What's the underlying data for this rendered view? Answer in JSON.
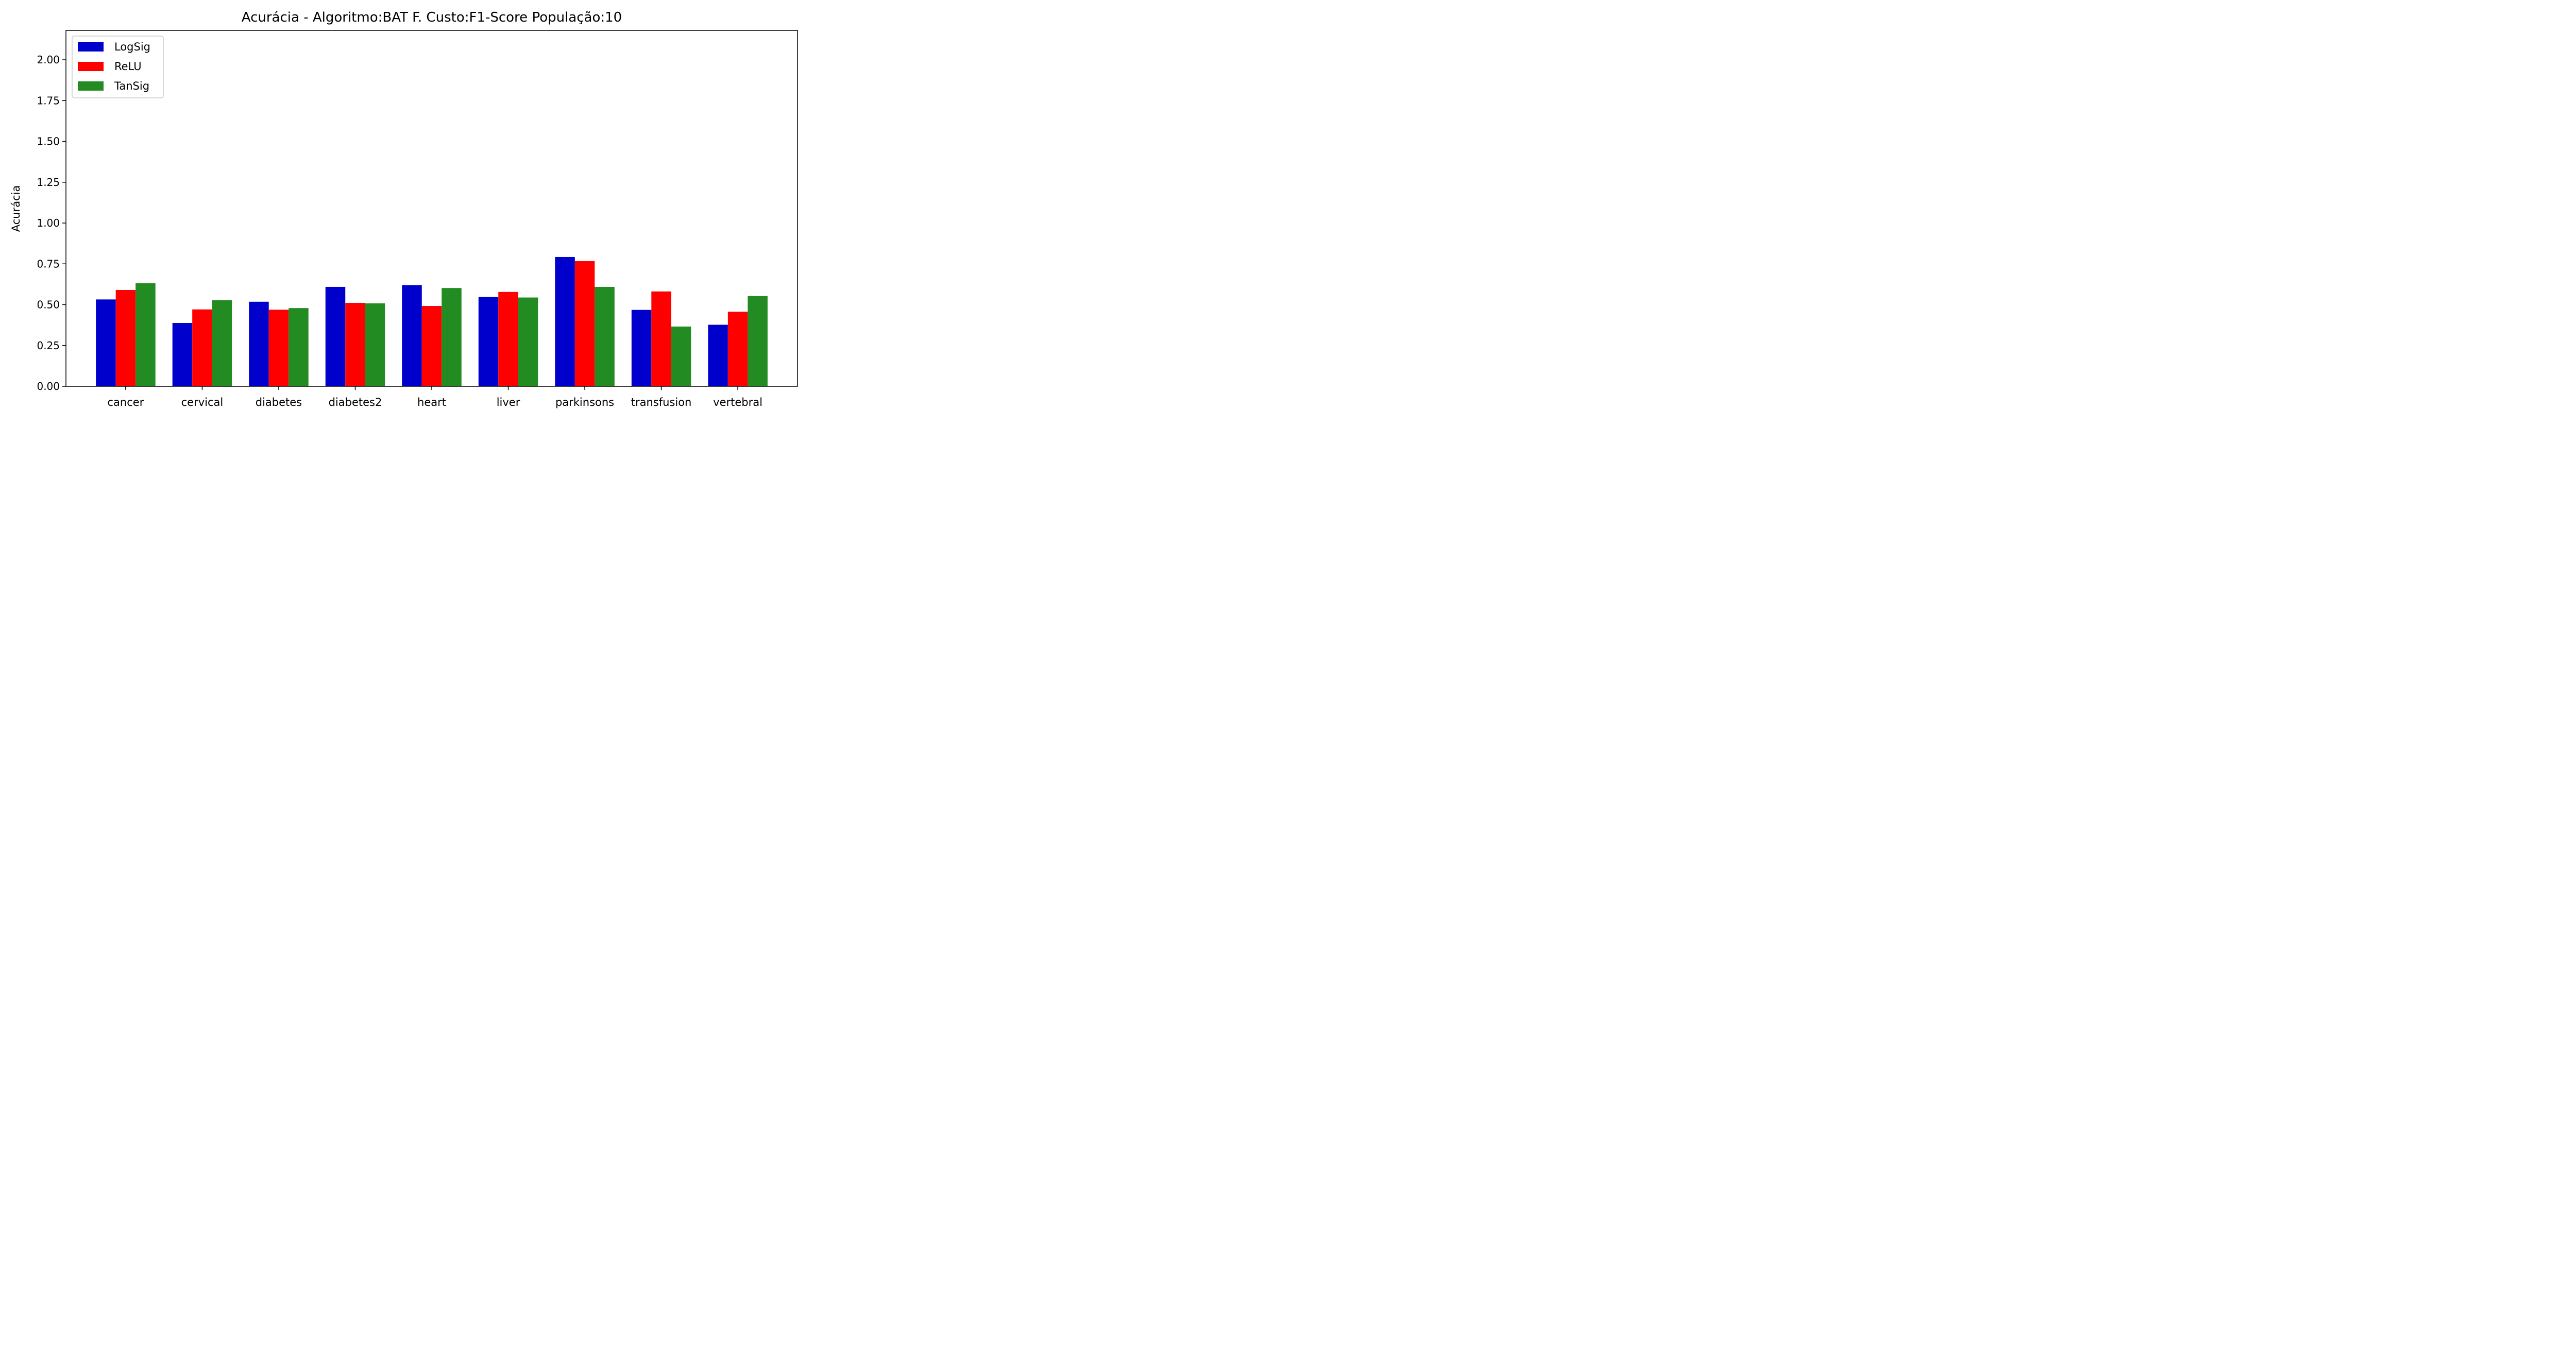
{
  "chart_data": {
    "type": "bar",
    "title": "Acurácia - Algoritmo:BAT F. Custo:F1-Score População:10",
    "xlabel": "",
    "ylabel": "Acurácia",
    "ylim": [
      0,
      2.18
    ],
    "yticks": [
      "0.00",
      "0.25",
      "0.50",
      "0.75",
      "1.00",
      "1.25",
      "1.50",
      "1.75",
      "2.00"
    ],
    "categories": [
      "cancer",
      "cervical",
      "diabetes",
      "diabetes2",
      "heart",
      "liver",
      "parkinsons",
      "transfusion",
      "vertebral"
    ],
    "series": [
      {
        "name": "LogSig",
        "color": "#0000cc",
        "values": [
          0.532,
          0.388,
          0.518,
          0.609,
          0.62,
          0.547,
          0.792,
          0.468,
          0.377
        ]
      },
      {
        "name": "ReLU",
        "color": "#ff0000",
        "values": [
          0.59,
          0.471,
          0.469,
          0.511,
          0.492,
          0.578,
          0.767,
          0.581,
          0.457
        ]
      },
      {
        "name": "TanSig",
        "color": "#228b22",
        "values": [
          0.631,
          0.527,
          0.479,
          0.508,
          0.602,
          0.544,
          0.609,
          0.366,
          0.553
        ]
      }
    ],
    "legend_position": "top-left",
    "grid": false
  }
}
